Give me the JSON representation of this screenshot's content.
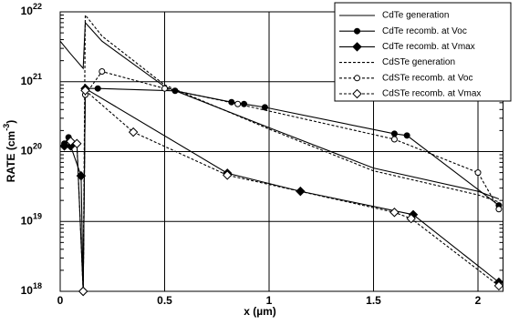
{
  "chart_data": {
    "type": "line",
    "xlabel": "x (µm)",
    "ylabel": "RATE (cm",
    "ylabel_sup": "-3",
    "ylabel_end": ")",
    "xlim": [
      0,
      2.12
    ],
    "xticks": [
      0,
      0.5,
      1,
      1.5,
      2
    ],
    "ylim": [
      1e+18,
      1e+22
    ],
    "yticks": [
      {
        "value": 1e+18,
        "label": "10",
        "exponent": "18"
      },
      {
        "value": 1e+19,
        "label": "10",
        "exponent": "19"
      },
      {
        "value": 1e+20,
        "label": "10",
        "exponent": "20"
      },
      {
        "value": 1e+21,
        "label": "10",
        "exponent": "21"
      },
      {
        "value": 1e+22,
        "label": "10",
        "exponent": "22"
      }
    ],
    "log_y": true,
    "grid": true,
    "legend": "upper right",
    "series": [
      {
        "name": "CdTe generation",
        "color": "#000000",
        "dash": false,
        "marker": "none",
        "x": [
          0,
          0.05,
          0.11,
          0.12,
          0.2,
          0.3,
          0.5,
          1.0,
          1.5,
          2.0,
          2.1
        ],
        "values": [
          3.8e+21,
          2.5e+21,
          1.55e+21,
          7e+21,
          3.8e+21,
          2.3e+21,
          8.5e+20,
          2.2e+20,
          5.8e+19,
          2.7e+19,
          2.1e+19
        ]
      },
      {
        "name": "CdTe recomb. at Voc",
        "color": "#000000",
        "dash": false,
        "marker": "circle-filled",
        "x": [
          0.02,
          0.04,
          0.08,
          0.11,
          0.12,
          0.18,
          0.55,
          0.82,
          0.88,
          0.98,
          1.6,
          1.66,
          2.1
        ],
        "values": [
          1.3e+20,
          1.6e+20,
          1.3e+20,
          1e+18,
          8e+20,
          8e+20,
          7.4e+20,
          5.1e+20,
          4.8e+20,
          4.3e+20,
          1.8e+20,
          1.7e+20,
          1.7e+19
        ]
      },
      {
        "name": "CdTe recomb. at Vmax",
        "color": "#000000",
        "dash": false,
        "marker": "diamond-filled",
        "x": [
          0.02,
          0.05,
          0.1,
          0.11,
          0.12,
          0.8,
          1.15,
          1.69,
          2.1
        ],
        "values": [
          1.2e+20,
          1.2e+20,
          4.5e+19,
          1e+18,
          8e+20,
          4.9e+19,
          2.7e+19,
          1.25e+19,
          1.35e+18
        ]
      },
      {
        "name": "CdSTe generation",
        "color": "#000000",
        "dash": true,
        "marker": "none",
        "x": [
          0.11,
          0.12,
          0.2,
          0.5,
          1.0,
          1.5,
          2.0,
          2.1
        ],
        "values": [
          1e+18,
          9e+21,
          4.5e+21,
          9e+20,
          2.1e+20,
          5.3e+19,
          2.4e+19,
          1.9e+19
        ]
      },
      {
        "name": "CdSTe recomb. at Voc",
        "color": "#000000",
        "dash": true,
        "marker": "circle-open",
        "x": [
          0.12,
          0.2,
          0.5,
          0.85,
          1.6,
          2.0,
          2.1
        ],
        "values": [
          6.5e+20,
          1.4e+21,
          8e+20,
          4.8e+20,
          1.5e+20,
          5e+19,
          1.5e+19
        ]
      },
      {
        "name": "CdSTe recomb. at Vmax",
        "color": "#000000",
        "dash": true,
        "marker": "diamond-open",
        "x": [
          0.05,
          0.08,
          0.11,
          0.12,
          0.35,
          0.8,
          1.6,
          1.68,
          2.1
        ],
        "values": [
          1.4e+20,
          1.3e+20,
          1e+18,
          7.5e+20,
          1.9e+20,
          4.6e+19,
          1.35e+19,
          1.1e+19,
          1.2e+18
        ]
      }
    ]
  }
}
